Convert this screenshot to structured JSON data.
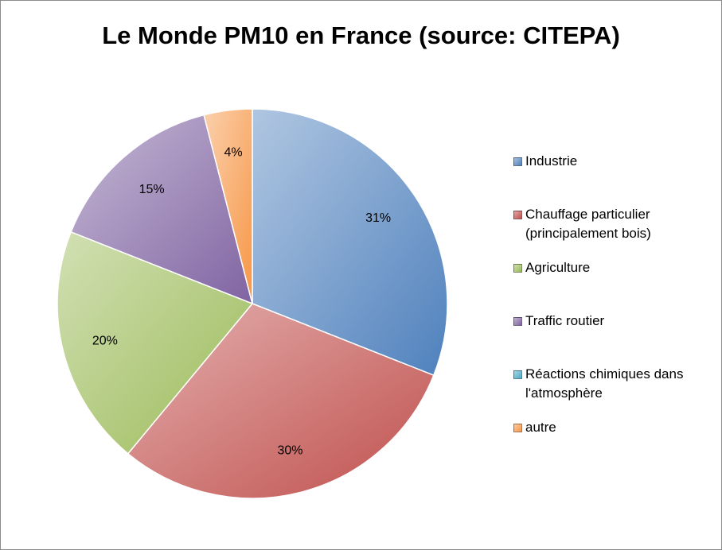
{
  "chart_data": {
    "type": "pie",
    "title": "Le Monde PM10 en France (source: CITEPA)",
    "categories": [
      "Industrie",
      "Chauffage particulier (principalement bois)",
      "Agriculture",
      "Traffic routier",
      "Réactions chimiques dans l'atmosphère",
      "autre"
    ],
    "legend_lines": [
      [
        "Industrie"
      ],
      [
        "Chauffage particulier",
        "(principalement bois)"
      ],
      [
        "Agriculture"
      ],
      [
        "Traffic routier"
      ],
      [
        "Réactions chimiques dans",
        "l'atmosphère"
      ],
      [
        "autre"
      ]
    ],
    "values": [
      31,
      30,
      20,
      15,
      0,
      4
    ],
    "data_labels": [
      "31%",
      "30%",
      "20%",
      "15%",
      "",
      "4%"
    ],
    "colors": [
      "#4f81bd",
      "#c0504d",
      "#9bbb59",
      "#8064a2",
      "#4bacc6",
      "#f79646"
    ],
    "legend_position": "right",
    "start_angle": "12 o'clock",
    "direction": "clockwise"
  }
}
